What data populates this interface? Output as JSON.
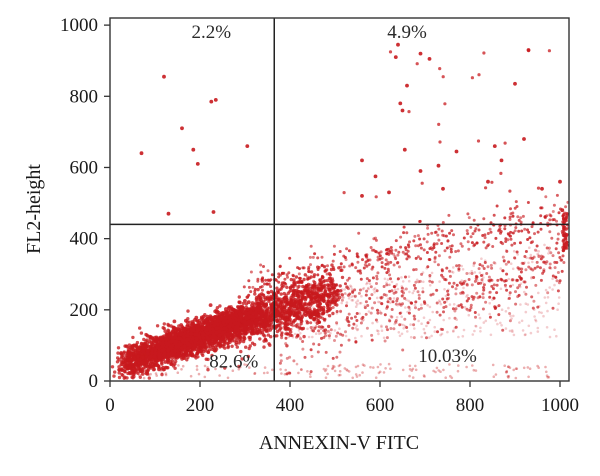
{
  "chart_data": {
    "type": "scatter",
    "title": "",
    "xlabel": "ANNEXIN-V FITC",
    "ylabel": "FL2-height",
    "xlim": [
      0,
      1020
    ],
    "ylim": [
      0,
      1020
    ],
    "xticks": [
      0,
      200,
      400,
      600,
      800,
      1000
    ],
    "yticks": [
      0,
      200,
      400,
      600,
      800,
      1000
    ],
    "grid": false,
    "legend": "none",
    "point_color": "#c8191e",
    "gates": {
      "x": 365,
      "y": 440
    },
    "quadrants": [
      {
        "id": "upper-left",
        "label": "2.2%",
        "x": 225,
        "y": 980
      },
      {
        "id": "upper-right",
        "label": "4.9%",
        "x": 660,
        "y": 980
      },
      {
        "id": "lower-left",
        "label": "82.6%",
        "x": 275,
        "y": 55
      },
      {
        "id": "lower-right",
        "label": "10.03%",
        "x": 750,
        "y": 70
      }
    ],
    "sparse_points": [
      [
        120,
        855
      ],
      [
        235,
        790
      ],
      [
        225,
        785
      ],
      [
        160,
        710
      ],
      [
        305,
        660
      ],
      [
        70,
        640
      ],
      [
        185,
        650
      ],
      [
        195,
        610
      ],
      [
        130,
        470
      ],
      [
        230,
        475
      ],
      [
        640,
        945
      ],
      [
        635,
        910
      ],
      [
        690,
        920
      ],
      [
        710,
        905
      ],
      [
        660,
        830
      ],
      [
        645,
        780
      ],
      [
        650,
        760
      ],
      [
        930,
        930
      ],
      [
        900,
        835
      ],
      [
        655,
        650
      ],
      [
        730,
        605
      ],
      [
        855,
        660
      ],
      [
        920,
        680
      ],
      [
        870,
        620
      ],
      [
        690,
        590
      ],
      [
        590,
        575
      ],
      [
        560,
        520
      ],
      [
        620,
        530
      ],
      [
        740,
        540
      ],
      [
        840,
        560
      ],
      [
        960,
        540
      ],
      [
        1005,
        480
      ],
      [
        1000,
        560
      ],
      [
        560,
        620
      ],
      [
        770,
        645
      ]
    ]
  }
}
